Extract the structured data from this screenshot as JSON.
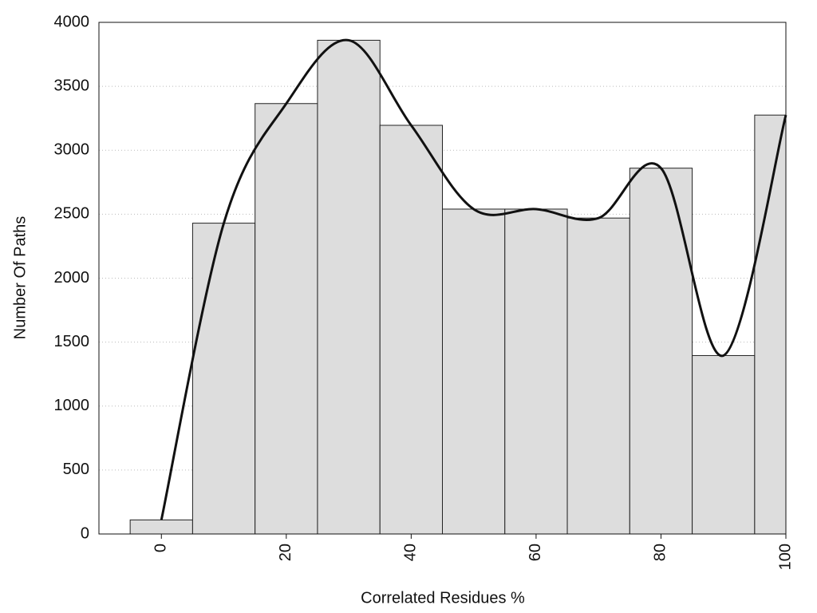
{
  "chart_data": {
    "type": "histogram",
    "xlabel": "Correlated Residues %",
    "ylabel": "Number Of Paths",
    "bins": [
      -5,
      5,
      15,
      25,
      35,
      45,
      55,
      65,
      75,
      85,
      95,
      100
    ],
    "values": [
      110,
      2430,
      3365,
      3860,
      3195,
      2540,
      2540,
      2470,
      2860,
      1395,
      3275
    ],
    "color": "#dddddd",
    "curve": {
      "x": [
        0,
        10,
        20,
        30,
        40,
        50,
        60,
        70,
        80,
        90,
        100
      ],
      "values": [
        110,
        2430,
        3365,
        3860,
        3195,
        2540,
        2540,
        2470,
        2860,
        1395,
        3275
      ],
      "color": "#111111"
    },
    "xlim": [
      -10,
      100
    ],
    "ylim": [
      0,
      4000
    ],
    "xticks": [
      0,
      20,
      40,
      60,
      80,
      100
    ],
    "yticks": [
      0,
      500,
      1000,
      1500,
      2000,
      2500,
      3000,
      3500,
      4000
    ],
    "grid": true
  }
}
